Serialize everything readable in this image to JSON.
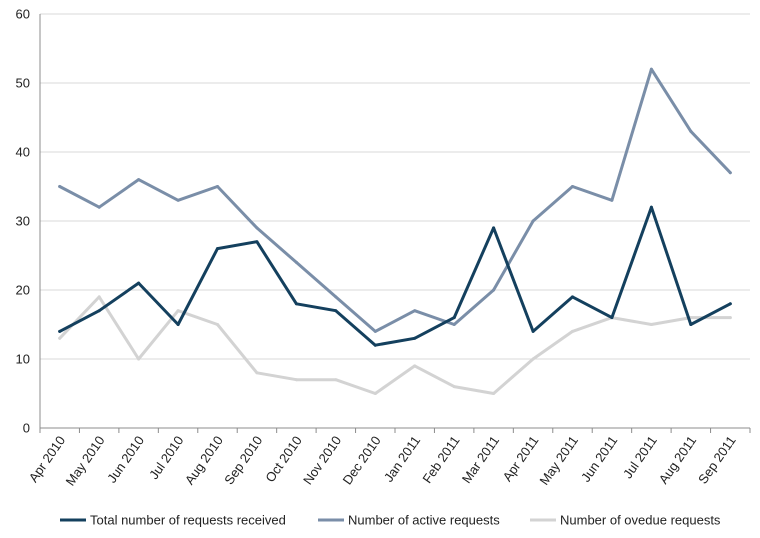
{
  "chart_data": {
    "type": "line",
    "title": "",
    "xlabel": "",
    "ylabel": "",
    "categories": [
      "Apr 2010",
      "May 2010",
      "Jun 2010",
      "Jul 2010",
      "Aug 2010",
      "Sep 2010",
      "Oct 2010",
      "Nov 2010",
      "Dec 2010",
      "Jan 2011",
      "Feb 2011",
      "Mar 2011",
      "Apr 2011",
      "May 2011",
      "Jun 2011",
      "Jul 2011",
      "Aug 2011",
      "Sep 2011"
    ],
    "ylim": [
      0,
      60
    ],
    "yticks": [
      0,
      10,
      20,
      30,
      40,
      50,
      60
    ],
    "grid": true,
    "legend_position": "bottom",
    "series": [
      {
        "name": "Total number of requests received",
        "color": "#14405e",
        "values": [
          14,
          17,
          21,
          15,
          26,
          27,
          18,
          17,
          12,
          13,
          16,
          29,
          14,
          19,
          16,
          32,
          15,
          18
        ]
      },
      {
        "name": "Number of active requests",
        "color": "#7a8ea8",
        "values": [
          35,
          32,
          36,
          33,
          35,
          29,
          24,
          19,
          14,
          17,
          15,
          20,
          30,
          35,
          33,
          52,
          43,
          37
        ]
      },
      {
        "name": "Number of ovedue requests",
        "color": "#d3d3d3",
        "values": [
          13,
          19,
          10,
          17,
          15,
          8,
          7,
          7,
          5,
          9,
          6,
          5,
          10,
          14,
          16,
          15,
          16,
          16
        ]
      }
    ]
  }
}
